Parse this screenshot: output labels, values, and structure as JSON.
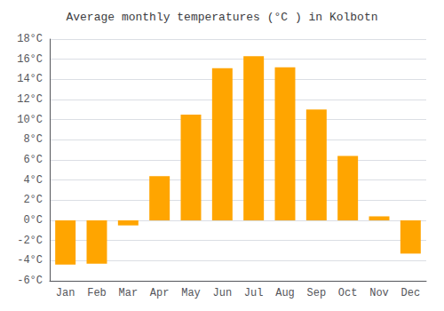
{
  "chart_data": {
    "type": "bar",
    "title": "Average monthly temperatures (°C ) in Kolbotn",
    "categories": [
      "Jan",
      "Feb",
      "Mar",
      "Apr",
      "May",
      "Jun",
      "Jul",
      "Aug",
      "Sep",
      "Oct",
      "Nov",
      "Dec"
    ],
    "values": [
      -4.4,
      -4.3,
      -0.5,
      4.4,
      10.5,
      15.1,
      16.3,
      15.2,
      11.0,
      6.4,
      0.4,
      -3.3
    ],
    "color": "#FFA500",
    "ylim": [
      -6,
      18
    ],
    "yticks": [
      {
        "value": -6,
        "label": "-6°C"
      },
      {
        "value": -4,
        "label": "-4°C"
      },
      {
        "value": -2,
        "label": "-2°C"
      },
      {
        "value": 0,
        "label": "0°C"
      },
      {
        "value": 2,
        "label": "2°C"
      },
      {
        "value": 4,
        "label": "4°C"
      },
      {
        "value": 6,
        "label": "6°C"
      },
      {
        "value": 8,
        "label": "8°C"
      },
      {
        "value": 10,
        "label": "10°C"
      },
      {
        "value": 12,
        "label": "12°C"
      },
      {
        "value": 14,
        "label": "14°C"
      },
      {
        "value": 16,
        "label": "16°C"
      },
      {
        "value": 18,
        "label": "18°C"
      }
    ],
    "grid": true
  }
}
